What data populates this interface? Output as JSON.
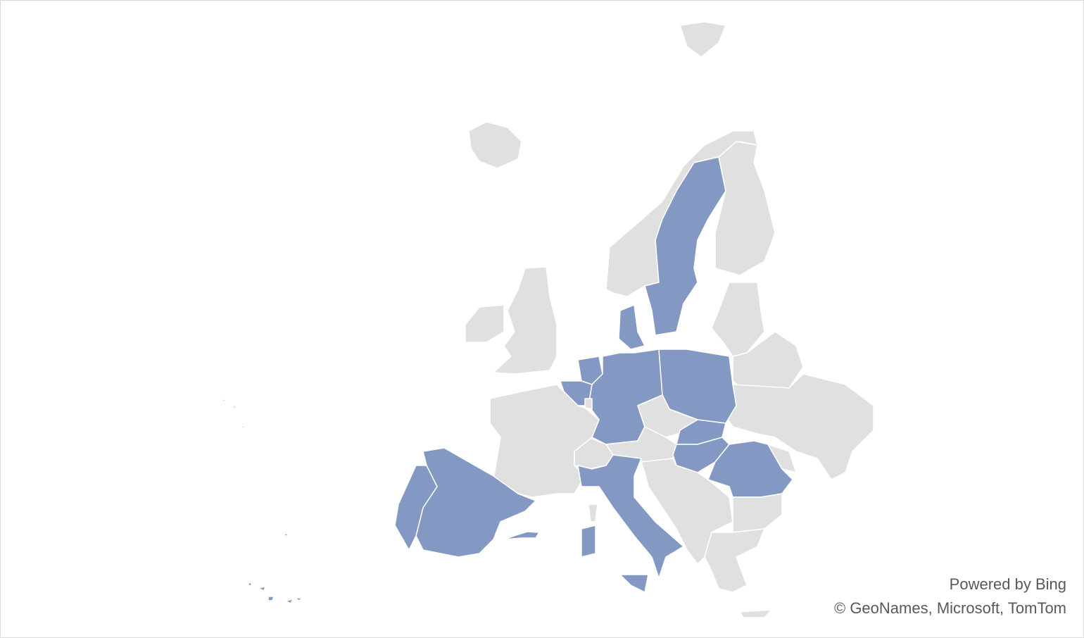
{
  "chart_data": {
    "type": "map",
    "region": "Europe",
    "highlighted_regions": [
      "Portugal",
      "Spain",
      "Italy",
      "Belgium",
      "Netherlands",
      "Germany",
      "Denmark",
      "Sweden",
      "Poland",
      "Slovakia",
      "Hungary",
      "Romania"
    ],
    "colors": {
      "highlighted": "#8399c4",
      "other": "#e0e0e0",
      "border": "#ffffff"
    }
  },
  "attribution": {
    "powered_by": "Powered by Bing",
    "copyright": "© GeoNames, Microsoft, TomTom"
  }
}
